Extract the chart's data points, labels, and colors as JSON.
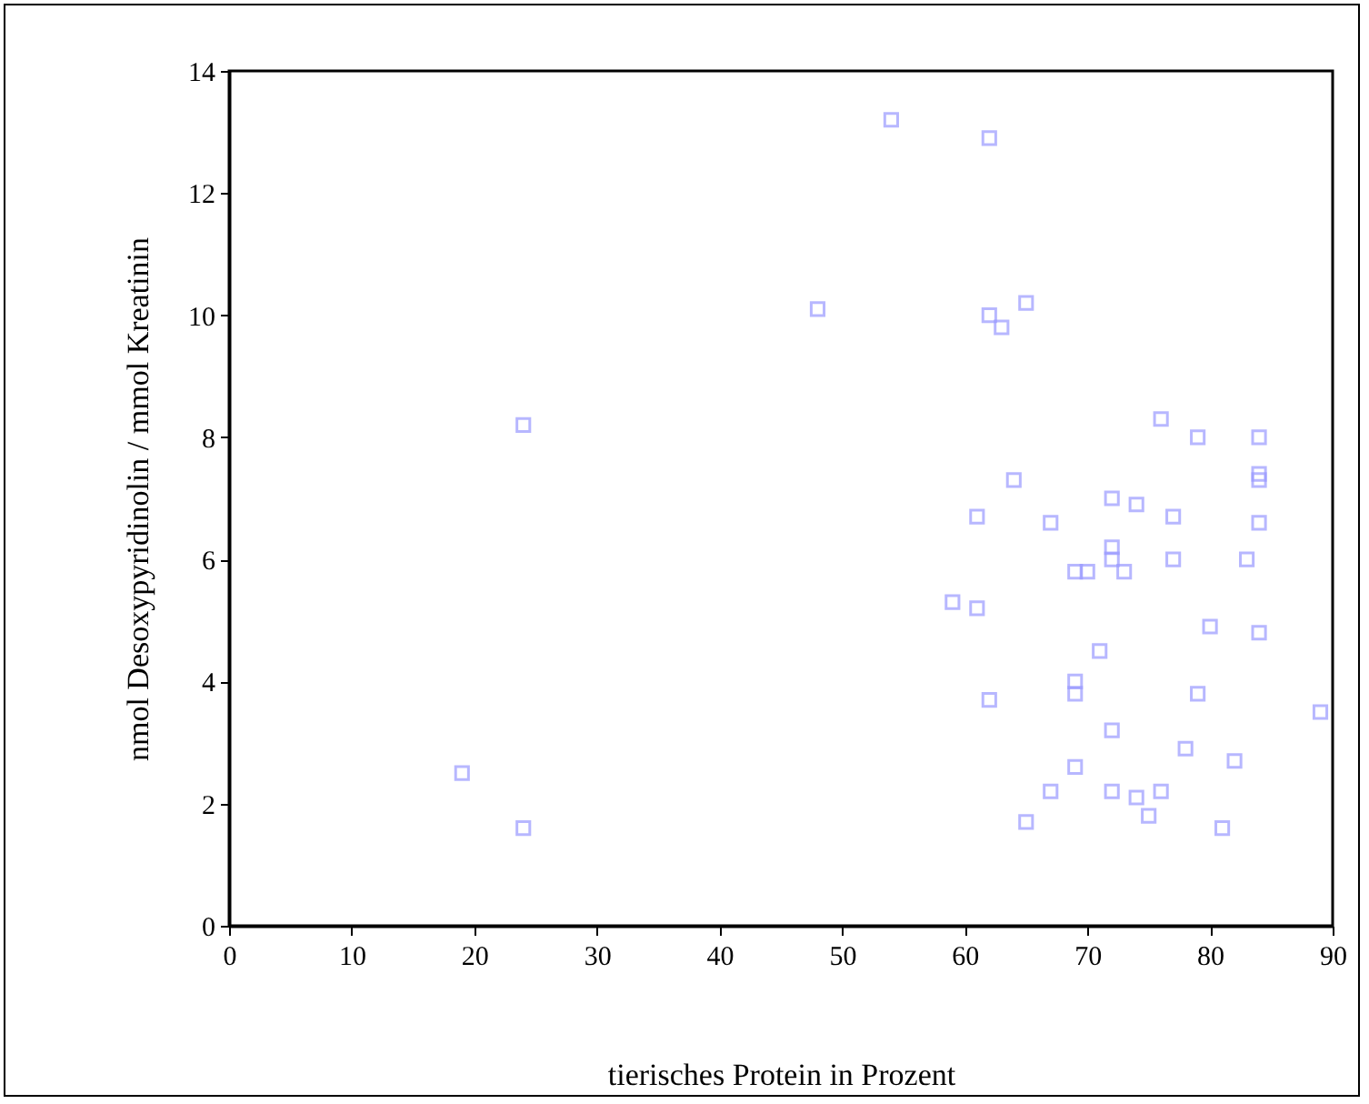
{
  "chart_data": {
    "type": "scatter",
    "xlabel": "tierisches Protein in Prozent",
    "ylabel": "nmol Desoxypyridinolin / mmol Kreatinin",
    "xlim": [
      0,
      90
    ],
    "ylim": [
      0,
      14
    ],
    "xticks": [
      0,
      10,
      20,
      30,
      40,
      50,
      60,
      70,
      80,
      90
    ],
    "yticks": [
      0,
      2,
      4,
      6,
      8,
      10,
      12,
      14
    ],
    "grid": false,
    "marker": "square",
    "series": [
      {
        "color": "#9999ff",
        "x": [
          19,
          24,
          24,
          48,
          54,
          62,
          62,
          63,
          65,
          76,
          79,
          84,
          64,
          84,
          84,
          72,
          74,
          61,
          77,
          67,
          84,
          72,
          72,
          77,
          83,
          69,
          70,
          73,
          59,
          61,
          80,
          84,
          71,
          69,
          69,
          79,
          62,
          89,
          72,
          78,
          82,
          69,
          67,
          72,
          74,
          76,
          65,
          75,
          81
        ],
        "values": [
          2.5,
          1.6,
          8.2,
          10.1,
          13.2,
          12.9,
          10.0,
          9.8,
          10.2,
          8.3,
          8.0,
          8.0,
          7.3,
          7.4,
          7.3,
          7.0,
          6.9,
          6.7,
          6.7,
          6.6,
          6.6,
          6.2,
          6.0,
          6.0,
          6.0,
          5.8,
          5.8,
          5.8,
          5.3,
          5.2,
          4.9,
          4.8,
          4.5,
          4.0,
          3.8,
          3.8,
          3.7,
          3.5,
          3.2,
          2.9,
          2.7,
          2.6,
          2.2,
          2.2,
          2.1,
          2.2,
          1.7,
          1.8,
          1.6
        ]
      }
    ]
  }
}
